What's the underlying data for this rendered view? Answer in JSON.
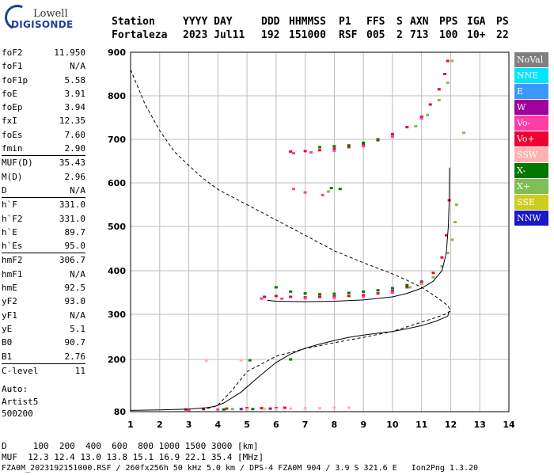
{
  "logo": {
    "line1": "Lowell",
    "line2": "DIGISONDE"
  },
  "header": {
    "row1": [
      "Station",
      "YYYY DAY",
      "DDD",
      "HHMMSS",
      "P1",
      "FFS",
      "S",
      "AXN",
      "PPS",
      "IGA",
      "PS"
    ],
    "row2": [
      "Fortaleza",
      "2023 Jul11",
      "192",
      "151000",
      "RSF",
      "005",
      "2",
      "713",
      "100",
      "10+",
      "22"
    ]
  },
  "params": [
    {
      "name": "foF2",
      "value": "11.950"
    },
    {
      "name": "foF1",
      "value": "N/A"
    },
    {
      "name": "foF1p",
      "value": "5.58"
    },
    {
      "name": "foE",
      "value": "3.91"
    },
    {
      "name": "foEp",
      "value": "3.94"
    },
    {
      "name": "fxI",
      "value": "12.35"
    },
    {
      "name": "foEs",
      "value": "7.60"
    },
    {
      "name": "fmin",
      "value": "2.90"
    },
    {
      "name": "MUF(D)",
      "value": "35.43",
      "sep": true
    },
    {
      "name": "M(D)",
      "value": "2.96"
    },
    {
      "name": "D",
      "value": "N/A"
    },
    {
      "name": "h`F",
      "value": "331.0",
      "sep": true
    },
    {
      "name": "h`F2",
      "value": "331.0"
    },
    {
      "name": "h`E",
      "value": "89.7"
    },
    {
      "name": "h`Es",
      "value": "95.0"
    },
    {
      "name": "hmF2",
      "value": "306.7",
      "sep": true
    },
    {
      "name": "hmF1",
      "value": "N/A"
    },
    {
      "name": "hmE",
      "value": "92.5"
    },
    {
      "name": "yF2",
      "value": "93.0"
    },
    {
      "name": "yF1",
      "value": "N/A"
    },
    {
      "name": "yE",
      "value": "5.1"
    },
    {
      "name": "B0",
      "value": "90.7"
    },
    {
      "name": "B1",
      "value": "2.76"
    },
    {
      "name": "C-level",
      "value": "11",
      "sep": true
    }
  ],
  "autoscaling": {
    "line1": "Auto:",
    "line2": "Artist5",
    "line3": "500200"
  },
  "legend": [
    {
      "label": "NoVal",
      "color": "#7f7f7f"
    },
    {
      "label": "NNE",
      "color": "#00e5ff"
    },
    {
      "label": "E",
      "color": "#3c96ff"
    },
    {
      "label": "W",
      "color": "#a0009b"
    },
    {
      "label": "Vo-",
      "color": "#ff3ca8"
    },
    {
      "label": "Vo+",
      "color": "#ee0035"
    },
    {
      "label": "SSW",
      "color": "#ffb2b2"
    },
    {
      "label": "X-",
      "color": "#007800"
    },
    {
      "label": "X+",
      "color": "#7dbf55"
    },
    {
      "label": "SSE",
      "color": "#cdcd1c"
    },
    {
      "label": "NNW",
      "color": "#1818c8"
    }
  ],
  "footer": {
    "d_row": "D     100  200  400  600  800 1000 1500 3000 [km]",
    "muf_row": "MUF  12.3 12.4 13.0 13.8 15.1 16.9 22.1 35.4 [MHz]",
    "file_row": "FZA0M_2023192151000.RSF / 260fx256h 50 kHz 5.0 km / DPS-4 FZA0M 904 / 3.9 S 321.6 E   Ion2Png 1.3.20"
  },
  "chart_data": {
    "type": "scatter",
    "xlim": [
      1,
      14
    ],
    "ylim": [
      80,
      900
    ],
    "x_ticks": [
      1,
      2,
      3,
      4,
      5,
      6,
      7,
      8,
      9,
      10,
      11,
      12,
      13,
      14
    ],
    "y_ticks": [
      80,
      200,
      300,
      400,
      500,
      600,
      700,
      800,
      900
    ],
    "grid": true,
    "series": [
      {
        "name": "Vo+",
        "color": "#ee0035",
        "points": [
          [
            5.6,
            340
          ],
          [
            6,
            342
          ],
          [
            6.5,
            340
          ],
          [
            7,
            339
          ],
          [
            7.5,
            340
          ],
          [
            8,
            341
          ],
          [
            8.5,
            342
          ],
          [
            9,
            344
          ],
          [
            9.5,
            348
          ],
          [
            10,
            354
          ],
          [
            10.5,
            362
          ],
          [
            11,
            375
          ],
          [
            11.4,
            395
          ],
          [
            11.7,
            430
          ],
          [
            11.85,
            480
          ],
          [
            11.95,
            560
          ],
          [
            6.5,
            672
          ],
          [
            7,
            673
          ],
          [
            7.5,
            675
          ],
          [
            8,
            678
          ],
          [
            8.5,
            682
          ],
          [
            9,
            688
          ],
          [
            9.5,
            698
          ],
          [
            10,
            712
          ],
          [
            10.5,
            728
          ],
          [
            11,
            752
          ],
          [
            11.3,
            780
          ],
          [
            11.6,
            815
          ],
          [
            11.8,
            850
          ],
          [
            11.9,
            880
          ],
          [
            2.9,
            85
          ],
          [
            3.5,
            86
          ],
          [
            4.3,
            87
          ],
          [
            5,
            88
          ],
          [
            5.5,
            88
          ],
          [
            6,
            88
          ],
          [
            6.3,
            89
          ]
        ]
      },
      {
        "name": "Vo-",
        "color": "#ff3ca8",
        "points": [
          [
            5.5,
            336
          ],
          [
            6.2,
            336
          ],
          [
            7,
            337
          ],
          [
            8,
            338
          ],
          [
            9,
            340
          ],
          [
            10,
            350
          ],
          [
            6.6,
            668
          ],
          [
            7.2,
            670
          ],
          [
            8,
            674
          ],
          [
            9,
            684
          ],
          [
            10,
            706
          ],
          [
            11,
            748
          ],
          [
            6.6,
            586
          ],
          [
            7,
            578
          ],
          [
            7.6,
            572
          ],
          [
            3,
            84
          ],
          [
            4,
            85
          ],
          [
            5,
            86
          ]
        ]
      },
      {
        "name": "X-",
        "color": "#007800",
        "points": [
          [
            6,
            362
          ],
          [
            6.5,
            352
          ],
          [
            7,
            348
          ],
          [
            7.5,
            346
          ],
          [
            8,
            347
          ],
          [
            8.5,
            349
          ],
          [
            9,
            352
          ],
          [
            9.5,
            355
          ],
          [
            10,
            360
          ],
          [
            10.5,
            367
          ],
          [
            7.5,
            682
          ],
          [
            8,
            684
          ],
          [
            8.5,
            686
          ],
          [
            9,
            692
          ],
          [
            9.5,
            700
          ],
          [
            7.9,
            588
          ],
          [
            8.2,
            586
          ],
          [
            5.1,
            198
          ],
          [
            6.5,
            200
          ],
          [
            4.2,
            85
          ],
          [
            5.2,
            86
          ]
        ]
      },
      {
        "name": "X+",
        "color": "#7dbf55",
        "points": [
          [
            10.6,
            362
          ],
          [
            11,
            370
          ],
          [
            11.4,
            385
          ],
          [
            11.7,
            410
          ],
          [
            11.9,
            440
          ],
          [
            12.05,
            470
          ],
          [
            12.15,
            510
          ],
          [
            12.2,
            550
          ],
          [
            10.8,
            730
          ],
          [
            11.2,
            756
          ],
          [
            11.6,
            790
          ],
          [
            11.9,
            830
          ],
          [
            12.05,
            880
          ],
          [
            12.45,
            715
          ],
          [
            7.8,
            580
          ],
          [
            4.5,
            86
          ]
        ]
      },
      {
        "name": "SSW",
        "color": "#ffb2b2",
        "points": [
          [
            5,
            85
          ],
          [
            5.6,
            86
          ],
          [
            6,
            86
          ],
          [
            6.5,
            87
          ],
          [
            7,
            88
          ],
          [
            7.5,
            88
          ],
          [
            8,
            89
          ],
          [
            8.5,
            89
          ],
          [
            3.6,
            197
          ],
          [
            4.8,
            198
          ]
        ]
      },
      {
        "name": "W",
        "color": "#a0009b",
        "points": [
          [
            4.8,
            86
          ],
          [
            5.8,
            87
          ]
        ]
      }
    ],
    "traces": [
      {
        "name": "profile",
        "style": "solid",
        "points": [
          [
            1,
            83
          ],
          [
            2,
            84
          ],
          [
            3,
            86
          ],
          [
            3.6,
            89
          ],
          [
            3.9,
            92
          ],
          [
            4.2,
            100
          ],
          [
            4.8,
            125
          ],
          [
            5.4,
            160
          ],
          [
            6,
            193
          ],
          [
            6.5,
            212
          ],
          [
            7,
            225
          ],
          [
            7.5,
            234
          ],
          [
            8,
            242
          ],
          [
            8.5,
            249
          ],
          [
            9,
            254
          ],
          [
            9.5,
            258
          ],
          [
            10,
            262
          ],
          [
            10.5,
            268
          ],
          [
            11,
            275
          ],
          [
            11.5,
            285
          ],
          [
            11.9,
            296
          ],
          [
            11.95,
            306.7
          ]
        ]
      },
      {
        "name": "virtual-height",
        "style": "solid",
        "points": [
          [
            5.7,
            332
          ],
          [
            6,
            330
          ],
          [
            7,
            329
          ],
          [
            8,
            330
          ],
          [
            9,
            333
          ],
          [
            10,
            340
          ],
          [
            10.5,
            348
          ],
          [
            11,
            360
          ],
          [
            11.4,
            376
          ],
          [
            11.7,
            400
          ],
          [
            11.85,
            440
          ],
          [
            11.92,
            500
          ],
          [
            11.95,
            560
          ],
          [
            11.96,
            635
          ]
        ]
      },
      {
        "name": "MUF-curve",
        "style": "dashed",
        "points": [
          [
            1,
            860
          ],
          [
            1.5,
            780
          ],
          [
            2,
            720
          ],
          [
            2.5,
            672
          ],
          [
            3,
            640
          ],
          [
            3.5,
            610
          ],
          [
            4,
            585
          ],
          [
            5,
            550
          ],
          [
            6,
            515
          ],
          [
            7,
            480
          ],
          [
            8,
            445
          ],
          [
            9,
            418
          ],
          [
            10,
            393
          ],
          [
            10.5,
            378
          ],
          [
            11,
            362
          ],
          [
            11.5,
            340
          ],
          [
            11.9,
            320
          ],
          [
            12,
            308
          ],
          [
            11.8,
            300
          ],
          [
            11.5,
            293
          ],
          [
            10,
            262
          ],
          [
            9,
            249
          ],
          [
            8,
            237
          ],
          [
            7,
            224
          ],
          [
            6,
            207
          ],
          [
            5,
            172
          ],
          [
            4.5,
            130
          ],
          [
            4,
            95
          ],
          [
            3.5,
            84
          ]
        ]
      }
    ]
  }
}
